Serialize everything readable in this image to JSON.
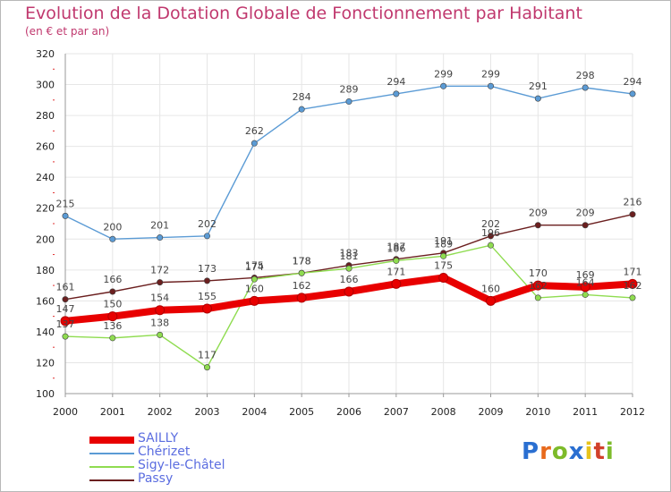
{
  "title": "Evolution de la Dotation Globale de Fonctionnement par Habitant",
  "subtitle": "(en € et par an)",
  "logo": {
    "text": "Proxiti",
    "colors": [
      "#2a6fd1",
      "#e86a1c",
      "#7dbb2a",
      "#2a6fd1",
      "#e8c41c",
      "#d1402a",
      "#7dbb2a"
    ]
  },
  "chart_data": {
    "type": "line",
    "title": "Evolution de la Dotation Globale de Fonctionnement par Habitant",
    "subtitle": "(en € et par an)",
    "xlabel": "",
    "ylabel": "",
    "ylim": [
      100,
      320
    ],
    "yticks": [
      100,
      120,
      140,
      160,
      180,
      200,
      220,
      240,
      260,
      280,
      300,
      320
    ],
    "grid": true,
    "legend_position": "bottom-left",
    "x": [
      "2000",
      "2001",
      "2002",
      "2003",
      "2004",
      "2005",
      "2006",
      "2007",
      "2008",
      "2009",
      "2010",
      "2011",
      "2012"
    ],
    "series": [
      {
        "name": "SAILLY",
        "color": "#e80000",
        "values": [
          147,
          150,
          154,
          155,
          160,
          162,
          166,
          171,
          175,
          160,
          170,
          169,
          171
        ]
      },
      {
        "name": "Chérizet",
        "color": "#5b9bd5",
        "values": [
          215,
          200,
          201,
          202,
          262,
          284,
          289,
          294,
          299,
          299,
          291,
          298,
          294
        ]
      },
      {
        "name": "Sigy-le-Châtel",
        "color": "#8fdc50",
        "values": [
          137,
          136,
          138,
          117,
          174,
          178,
          181,
          186,
          189,
          196,
          162,
          164,
          162
        ]
      },
      {
        "name": "Passy",
        "color": "#6b1f1f",
        "values": [
          161,
          166,
          172,
          173,
          175,
          178,
          183,
          187,
          191,
          202,
          209,
          209,
          216
        ]
      }
    ]
  }
}
